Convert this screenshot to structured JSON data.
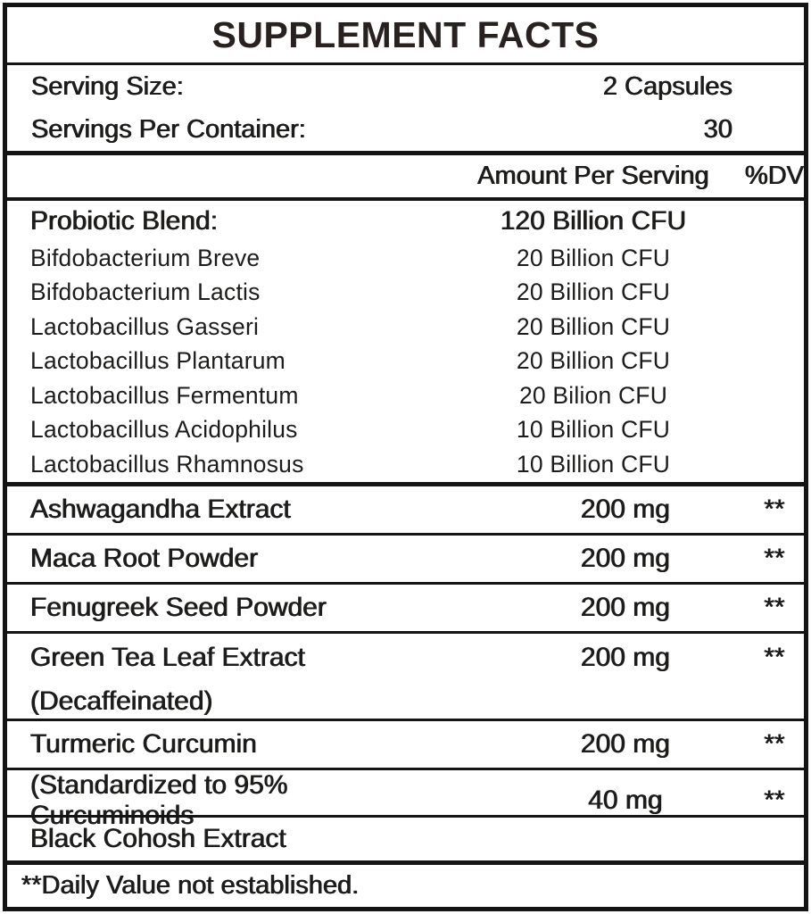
{
  "title": "SUPPLEMENT FACTS",
  "serving": {
    "rows": [
      {
        "label": "Serving Size:",
        "value": "2 Capsules"
      },
      {
        "label": "Servings Per Container:",
        "value": "30"
      }
    ]
  },
  "columns": {
    "amount": "Amount Per Serving",
    "dv": "%DV"
  },
  "probiotics": {
    "name": "Probiotic Blend:",
    "amount": "120 Billion CFU",
    "items": [
      {
        "name": "Bifdobacterium Breve",
        "amount": "20 Billion CFU"
      },
      {
        "name": "Bifdobacterium Lactis",
        "amount": "20 Billion CFU"
      },
      {
        "name": "Lactobacillus Gasseri",
        "amount": "20 Billion CFU"
      },
      {
        "name": "Lactobacillus Plantarum",
        "amount": "20 Billion CFU"
      },
      {
        "name": "Lactobacillus Fermentum",
        "amount": "20 Bilion CFU"
      },
      {
        "name": "Lactobacillus Acidophilus",
        "amount": "10 Billion CFU"
      },
      {
        "name": "Lactobacillus Rhamnosus",
        "amount": "10 Billion CFU"
      }
    ]
  },
  "ingredients": [
    {
      "name": "Ashwagandha Extract",
      "amount": "200 mg",
      "dv": "**"
    },
    {
      "name": "Maca Root Powder",
      "amount": "200 mg",
      "dv": "**"
    },
    {
      "name": "Fenugreek Seed Powder",
      "amount": "200 mg",
      "dv": "**"
    },
    {
      "name": "Green Tea Leaf Extract",
      "subname": "(Decaffeinated)",
      "amount": "200 mg",
      "dv": "**"
    },
    {
      "name": "Turmeric Curcumin",
      "amount": "200 mg",
      "dv": "**"
    },
    {
      "name": "(Standardized to 95% Curcuminoids",
      "amount": "40 mg",
      "dv": "**"
    },
    {
      "name": "Black Cohosh Extract",
      "amount": "",
      "dv": ""
    }
  ],
  "footnote": "**Daily Value not established.",
  "colors": {
    "title": "#28211f",
    "text": "#1d1c1b",
    "line": "#141414",
    "background": "#ffffff"
  }
}
